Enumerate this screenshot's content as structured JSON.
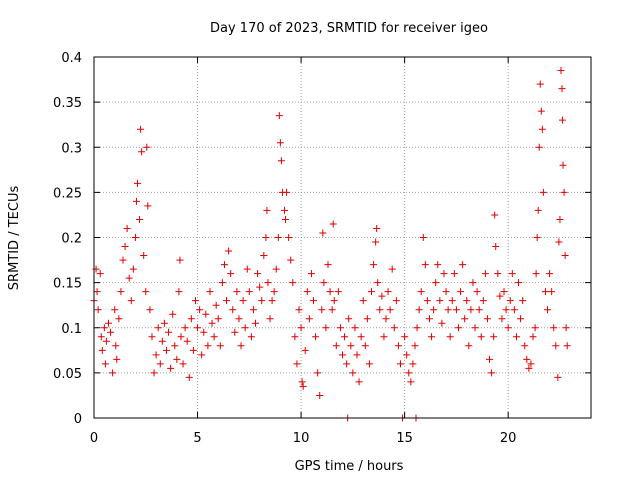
{
  "chart_data": {
    "type": "scatter",
    "title": "Day 170 of 2023, SRMTID for receiver igeo",
    "xlabel": "GPS time / hours",
    "ylabel": "SRMTID / TECUs",
    "xlim": [
      0,
      24
    ],
    "ylim": [
      0,
      0.4
    ],
    "x_ticks": [
      0,
      5,
      10,
      15,
      20
    ],
    "x_tick_labels": [
      "0",
      "5",
      "10",
      "15",
      "20"
    ],
    "y_ticks": [
      0,
      0.05,
      0.1,
      0.15,
      0.2,
      0.25,
      0.3,
      0.35,
      0.4
    ],
    "y_tick_labels": [
      "0",
      "0.05",
      "0.1",
      "0.15",
      "0.2",
      "0.25",
      "0.3",
      "0.35",
      "0.4"
    ],
    "grid": true,
    "marker": "plus",
    "color": "#e00000",
    "series": [
      {
        "name": "SRMTID",
        "points": [
          [
            0.0,
            0.13
          ],
          [
            0.1,
            0.165
          ],
          [
            0.15,
            0.14
          ],
          [
            0.2,
            0.12
          ],
          [
            0.3,
            0.16
          ],
          [
            0.35,
            0.09
          ],
          [
            0.4,
            0.075
          ],
          [
            0.5,
            0.1
          ],
          [
            0.55,
            0.06
          ],
          [
            0.6,
            0.085
          ],
          [
            0.7,
            0.105
          ],
          [
            0.8,
            0.095
          ],
          [
            0.9,
            0.05
          ],
          [
            1.0,
            0.12
          ],
          [
            1.05,
            0.08
          ],
          [
            1.1,
            0.065
          ],
          [
            1.2,
            0.11
          ],
          [
            1.3,
            0.14
          ],
          [
            1.4,
            0.175
          ],
          [
            1.5,
            0.19
          ],
          [
            1.6,
            0.21
          ],
          [
            1.7,
            0.155
          ],
          [
            1.8,
            0.13
          ],
          [
            1.9,
            0.165
          ],
          [
            2.0,
            0.2
          ],
          [
            2.05,
            0.24
          ],
          [
            2.1,
            0.26
          ],
          [
            2.2,
            0.22
          ],
          [
            2.25,
            0.32
          ],
          [
            2.3,
            0.295
          ],
          [
            2.4,
            0.18
          ],
          [
            2.5,
            0.14
          ],
          [
            2.55,
            0.3
          ],
          [
            2.6,
            0.235
          ],
          [
            2.7,
            0.12
          ],
          [
            2.8,
            0.09
          ],
          [
            2.9,
            0.05
          ],
          [
            3.0,
            0.07
          ],
          [
            3.1,
            0.1
          ],
          [
            3.2,
            0.06
          ],
          [
            3.3,
            0.085
          ],
          [
            3.4,
            0.105
          ],
          [
            3.5,
            0.075
          ],
          [
            3.6,
            0.095
          ],
          [
            3.7,
            0.055
          ],
          [
            3.8,
            0.115
          ],
          [
            3.9,
            0.08
          ],
          [
            4.0,
            0.065
          ],
          [
            4.1,
            0.14
          ],
          [
            4.15,
            0.175
          ],
          [
            4.2,
            0.09
          ],
          [
            4.3,
            0.06
          ],
          [
            4.4,
            0.1
          ],
          [
            4.5,
            0.085
          ],
          [
            4.6,
            0.045
          ],
          [
            4.7,
            0.11
          ],
          [
            4.8,
            0.075
          ],
          [
            4.9,
            0.13
          ],
          [
            5.0,
            0.1
          ],
          [
            5.1,
            0.12
          ],
          [
            5.2,
            0.07
          ],
          [
            5.3,
            0.095
          ],
          [
            5.4,
            0.115
          ],
          [
            5.5,
            0.08
          ],
          [
            5.6,
            0.14
          ],
          [
            5.7,
            0.105
          ],
          [
            5.8,
            0.09
          ],
          [
            5.9,
            0.125
          ],
          [
            6.0,
            0.11
          ],
          [
            6.1,
            0.08
          ],
          [
            6.2,
            0.15
          ],
          [
            6.3,
            0.17
          ],
          [
            6.4,
            0.13
          ],
          [
            6.5,
            0.185
          ],
          [
            6.6,
            0.16
          ],
          [
            6.7,
            0.12
          ],
          [
            6.8,
            0.095
          ],
          [
            6.9,
            0.14
          ],
          [
            7.0,
            0.11
          ],
          [
            7.1,
            0.08
          ],
          [
            7.2,
            0.13
          ],
          [
            7.3,
            0.1
          ],
          [
            7.4,
            0.165
          ],
          [
            7.5,
            0.14
          ],
          [
            7.6,
            0.09
          ],
          [
            7.7,
            0.12
          ],
          [
            7.8,
            0.105
          ],
          [
            7.9,
            0.16
          ],
          [
            8.0,
            0.145
          ],
          [
            8.1,
            0.13
          ],
          [
            8.2,
            0.18
          ],
          [
            8.3,
            0.2
          ],
          [
            8.35,
            0.23
          ],
          [
            8.4,
            0.15
          ],
          [
            8.5,
            0.11
          ],
          [
            8.6,
            0.13
          ],
          [
            8.7,
            0.14
          ],
          [
            8.8,
            0.165
          ],
          [
            8.9,
            0.2
          ],
          [
            8.95,
            0.335
          ],
          [
            9.0,
            0.305
          ],
          [
            9.05,
            0.285
          ],
          [
            9.1,
            0.25
          ],
          [
            9.2,
            0.23
          ],
          [
            9.25,
            0.22
          ],
          [
            9.3,
            0.25
          ],
          [
            9.4,
            0.2
          ],
          [
            9.5,
            0.175
          ],
          [
            9.6,
            0.15
          ],
          [
            9.7,
            0.09
          ],
          [
            9.8,
            0.06
          ],
          [
            9.9,
            0.12
          ],
          [
            10.0,
            0.1
          ],
          [
            10.05,
            0.04
          ],
          [
            10.1,
            0.035
          ],
          [
            10.2,
            0.075
          ],
          [
            10.3,
            0.14
          ],
          [
            10.4,
            0.11
          ],
          [
            10.5,
            0.16
          ],
          [
            10.6,
            0.13
          ],
          [
            10.7,
            0.09
          ],
          [
            10.8,
            0.05
          ],
          [
            10.9,
            0.025
          ],
          [
            11.0,
            0.12
          ],
          [
            11.05,
            0.205
          ],
          [
            11.1,
            0.15
          ],
          [
            11.2,
            0.1
          ],
          [
            11.3,
            0.17
          ],
          [
            11.4,
            0.14
          ],
          [
            11.5,
            0.12
          ],
          [
            11.55,
            0.215
          ],
          [
            11.6,
            0.13
          ],
          [
            11.7,
            0.08
          ],
          [
            11.8,
            0.14
          ],
          [
            11.9,
            0.1
          ],
          [
            12.0,
            0.07
          ],
          [
            12.1,
            0.09
          ],
          [
            12.2,
            0.06
          ],
          [
            12.25,
            0.0
          ],
          [
            12.3,
            0.11
          ],
          [
            12.4,
            0.08
          ],
          [
            12.5,
            0.05
          ],
          [
            12.6,
            0.1
          ],
          [
            12.7,
            0.07
          ],
          [
            12.8,
            0.04
          ],
          [
            12.9,
            0.09
          ],
          [
            13.0,
            0.13
          ],
          [
            13.1,
            0.08
          ],
          [
            13.2,
            0.11
          ],
          [
            13.3,
            0.06
          ],
          [
            13.4,
            0.14
          ],
          [
            13.5,
            0.17
          ],
          [
            13.6,
            0.195
          ],
          [
            13.65,
            0.21
          ],
          [
            13.7,
            0.15
          ],
          [
            13.8,
            0.12
          ],
          [
            13.9,
            0.135
          ],
          [
            14.0,
            0.09
          ],
          [
            14.1,
            0.11
          ],
          [
            14.2,
            0.14
          ],
          [
            14.3,
            0.12
          ],
          [
            14.4,
            0.165
          ],
          [
            14.5,
            0.1
          ],
          [
            14.6,
            0.13
          ],
          [
            14.7,
            0.08
          ],
          [
            14.8,
            0.06
          ],
          [
            14.9,
            0.0
          ],
          [
            15.0,
            0.09
          ],
          [
            15.1,
            0.07
          ],
          [
            15.2,
            0.05
          ],
          [
            15.3,
            0.04
          ],
          [
            15.4,
            0.06
          ],
          [
            15.5,
            0.08
          ],
          [
            15.55,
            0.0
          ],
          [
            15.6,
            0.1
          ],
          [
            15.7,
            0.12
          ],
          [
            15.8,
            0.14
          ],
          [
            15.9,
            0.2
          ],
          [
            16.0,
            0.17
          ],
          [
            16.1,
            0.13
          ],
          [
            16.2,
            0.11
          ],
          [
            16.3,
            0.09
          ],
          [
            16.4,
            0.12
          ],
          [
            16.5,
            0.15
          ],
          [
            16.6,
            0.17
          ],
          [
            16.7,
            0.13
          ],
          [
            16.8,
            0.105
          ],
          [
            16.9,
            0.16
          ],
          [
            17.0,
            0.14
          ],
          [
            17.1,
            0.12
          ],
          [
            17.2,
            0.09
          ],
          [
            17.3,
            0.13
          ],
          [
            17.4,
            0.16
          ],
          [
            17.5,
            0.12
          ],
          [
            17.6,
            0.1
          ],
          [
            17.7,
            0.14
          ],
          [
            17.8,
            0.17
          ],
          [
            17.9,
            0.11
          ],
          [
            18.0,
            0.13
          ],
          [
            18.1,
            0.08
          ],
          [
            18.2,
            0.12
          ],
          [
            18.3,
            0.15
          ],
          [
            18.4,
            0.1
          ],
          [
            18.5,
            0.14
          ],
          [
            18.6,
            0.12
          ],
          [
            18.7,
            0.09
          ],
          [
            18.8,
            0.13
          ],
          [
            18.9,
            0.16
          ],
          [
            19.0,
            0.11
          ],
          [
            19.1,
            0.065
          ],
          [
            19.2,
            0.05
          ],
          [
            19.3,
            0.09
          ],
          [
            19.35,
            0.225
          ],
          [
            19.4,
            0.19
          ],
          [
            19.5,
            0.16
          ],
          [
            19.6,
            0.135
          ],
          [
            19.7,
            0.11
          ],
          [
            19.8,
            0.14
          ],
          [
            19.9,
            0.12
          ],
          [
            20.0,
            0.1
          ],
          [
            20.1,
            0.13
          ],
          [
            20.2,
            0.16
          ],
          [
            20.3,
            0.12
          ],
          [
            20.4,
            0.09
          ],
          [
            20.5,
            0.15
          ],
          [
            20.6,
            0.11
          ],
          [
            20.7,
            0.13
          ],
          [
            20.8,
            0.08
          ],
          [
            20.9,
            0.065
          ],
          [
            21.0,
            0.055
          ],
          [
            21.1,
            0.06
          ],
          [
            21.2,
            0.09
          ],
          [
            21.3,
            0.1
          ],
          [
            21.35,
            0.16
          ],
          [
            21.4,
            0.2
          ],
          [
            21.45,
            0.23
          ],
          [
            21.5,
            0.3
          ],
          [
            21.55,
            0.37
          ],
          [
            21.6,
            0.34
          ],
          [
            21.65,
            0.32
          ],
          [
            21.7,
            0.25
          ],
          [
            21.8,
            0.14
          ],
          [
            21.9,
            0.12
          ],
          [
            22.0,
            0.16
          ],
          [
            22.1,
            0.14
          ],
          [
            22.2,
            0.1
          ],
          [
            22.3,
            0.08
          ],
          [
            22.4,
            0.045
          ],
          [
            22.45,
            0.195
          ],
          [
            22.5,
            0.22
          ],
          [
            22.55,
            0.385
          ],
          [
            22.6,
            0.365
          ],
          [
            22.62,
            0.33
          ],
          [
            22.65,
            0.28
          ],
          [
            22.7,
            0.25
          ],
          [
            22.75,
            0.18
          ],
          [
            22.8,
            0.1
          ],
          [
            22.85,
            0.08
          ]
        ]
      }
    ]
  }
}
